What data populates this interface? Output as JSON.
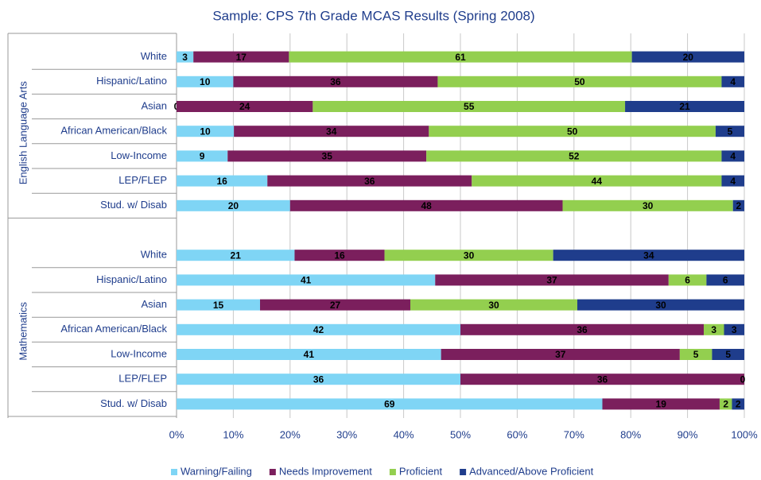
{
  "chart_data": {
    "type": "bar",
    "orientation": "horizontal",
    "stacked": "percent",
    "title": "Sample: CPS 7th Grade MCAS Results (Spring 2008)",
    "groups": [
      {
        "name": "English Language Arts",
        "categories": [
          "White",
          "Hispanic/Latino",
          "Asian",
          "African American/Black",
          "Low-Income",
          "LEP/FLEP",
          "Stud. w/ Disab"
        ]
      },
      {
        "name": "Mathematics",
        "categories": [
          "White",
          "Hispanic/Latino",
          "Asian",
          "African American/Black",
          "Low-Income",
          "LEP/FLEP",
          "Stud. w/ Disab"
        ]
      }
    ],
    "series": [
      {
        "name": "Warning/Failing",
        "color": "#7fd5f5",
        "values": [
          3,
          10,
          0,
          10,
          9,
          16,
          20,
          21,
          41,
          15,
          42,
          41,
          36,
          69
        ]
      },
      {
        "name": "Needs Improvement",
        "color": "#7b1f5d",
        "values": [
          17,
          36,
          24,
          34,
          35,
          36,
          48,
          16,
          37,
          27,
          36,
          37,
          36,
          19
        ]
      },
      {
        "name": "Proficient",
        "color": "#93cf4f",
        "values": [
          61,
          50,
          55,
          50,
          52,
          44,
          30,
          30,
          6,
          30,
          3,
          5,
          0,
          2
        ]
      },
      {
        "name": "Advanced/Above Proficient",
        "color": "#1f3d8c",
        "values": [
          20,
          4,
          21,
          5,
          4,
          4,
          2,
          34,
          6,
          30,
          3,
          5,
          null,
          2
        ]
      }
    ],
    "xlim": [
      0,
      100
    ],
    "xticks": [
      {
        "value": 0,
        "label": "0%"
      },
      {
        "value": 10,
        "label": "10%"
      },
      {
        "value": 20,
        "label": "20%"
      },
      {
        "value": 30,
        "label": "30%"
      },
      {
        "value": 40,
        "label": "40%"
      },
      {
        "value": 50,
        "label": "50%"
      },
      {
        "value": 60,
        "label": "60%"
      },
      {
        "value": 70,
        "label": "70%"
      },
      {
        "value": 80,
        "label": "80%"
      },
      {
        "value": 90,
        "label": "90%"
      },
      {
        "value": 100,
        "label": "100%"
      }
    ],
    "grid": true,
    "legend": "bottom"
  }
}
